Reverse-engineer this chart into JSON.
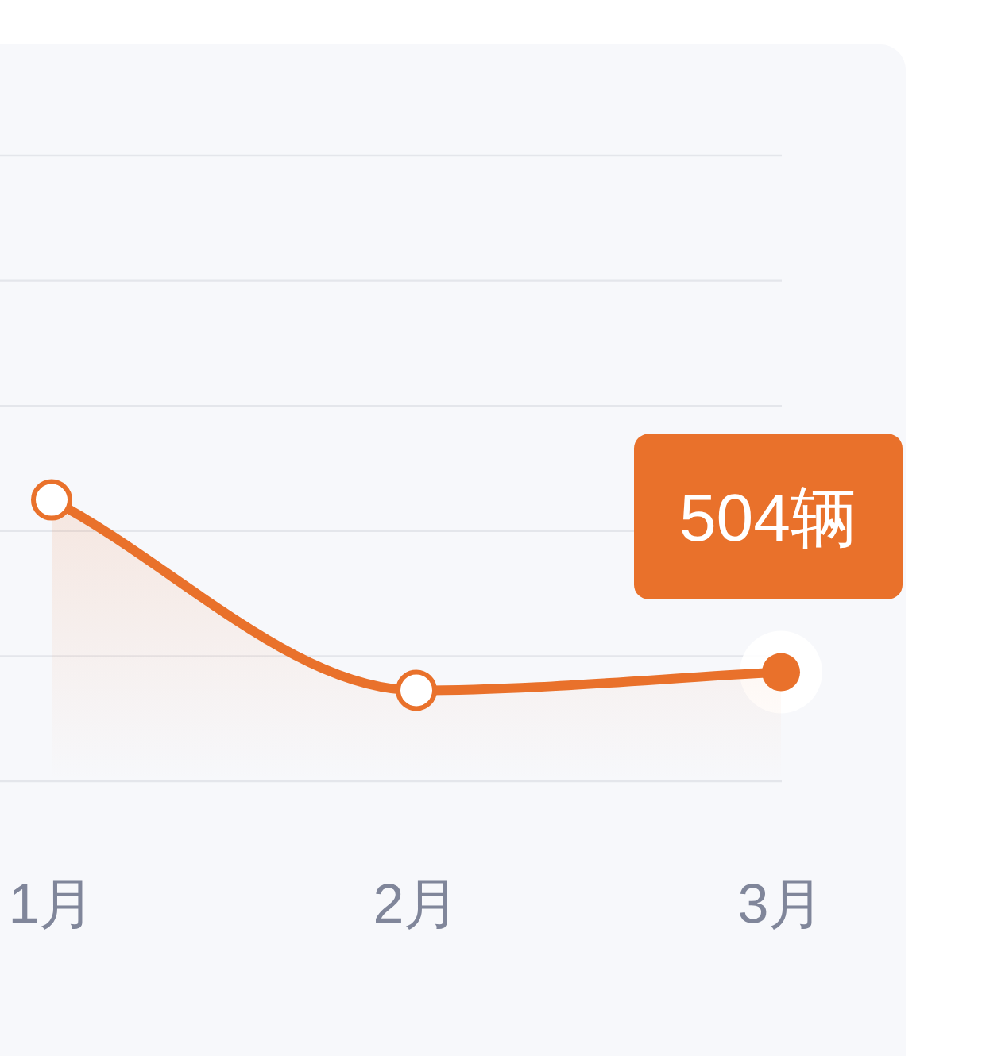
{
  "chart_data": {
    "type": "area",
    "categories": [
      "1月",
      "2月",
      "3月"
    ],
    "series": [
      {
        "color": "#e9712b",
        "values": [
          1300,
          420,
          504
        ],
        "value_labels": [
          null,
          null,
          "504辆"
        ]
      }
    ],
    "ylim": [
      0,
      2890
    ],
    "yticks": [
      {
        "value": 0,
        "label": null
      },
      {
        "value": 578,
        "label": null
      },
      {
        "value": 1156,
        "label": null
      },
      {
        "value": 1734,
        "label": null
      },
      {
        "value": 2312,
        "label": null
      },
      {
        "value": 2890,
        "label": null
      }
    ],
    "tick_labels": "x",
    "grid": "y",
    "marker": "circle",
    "line_style": "solid"
  }
}
